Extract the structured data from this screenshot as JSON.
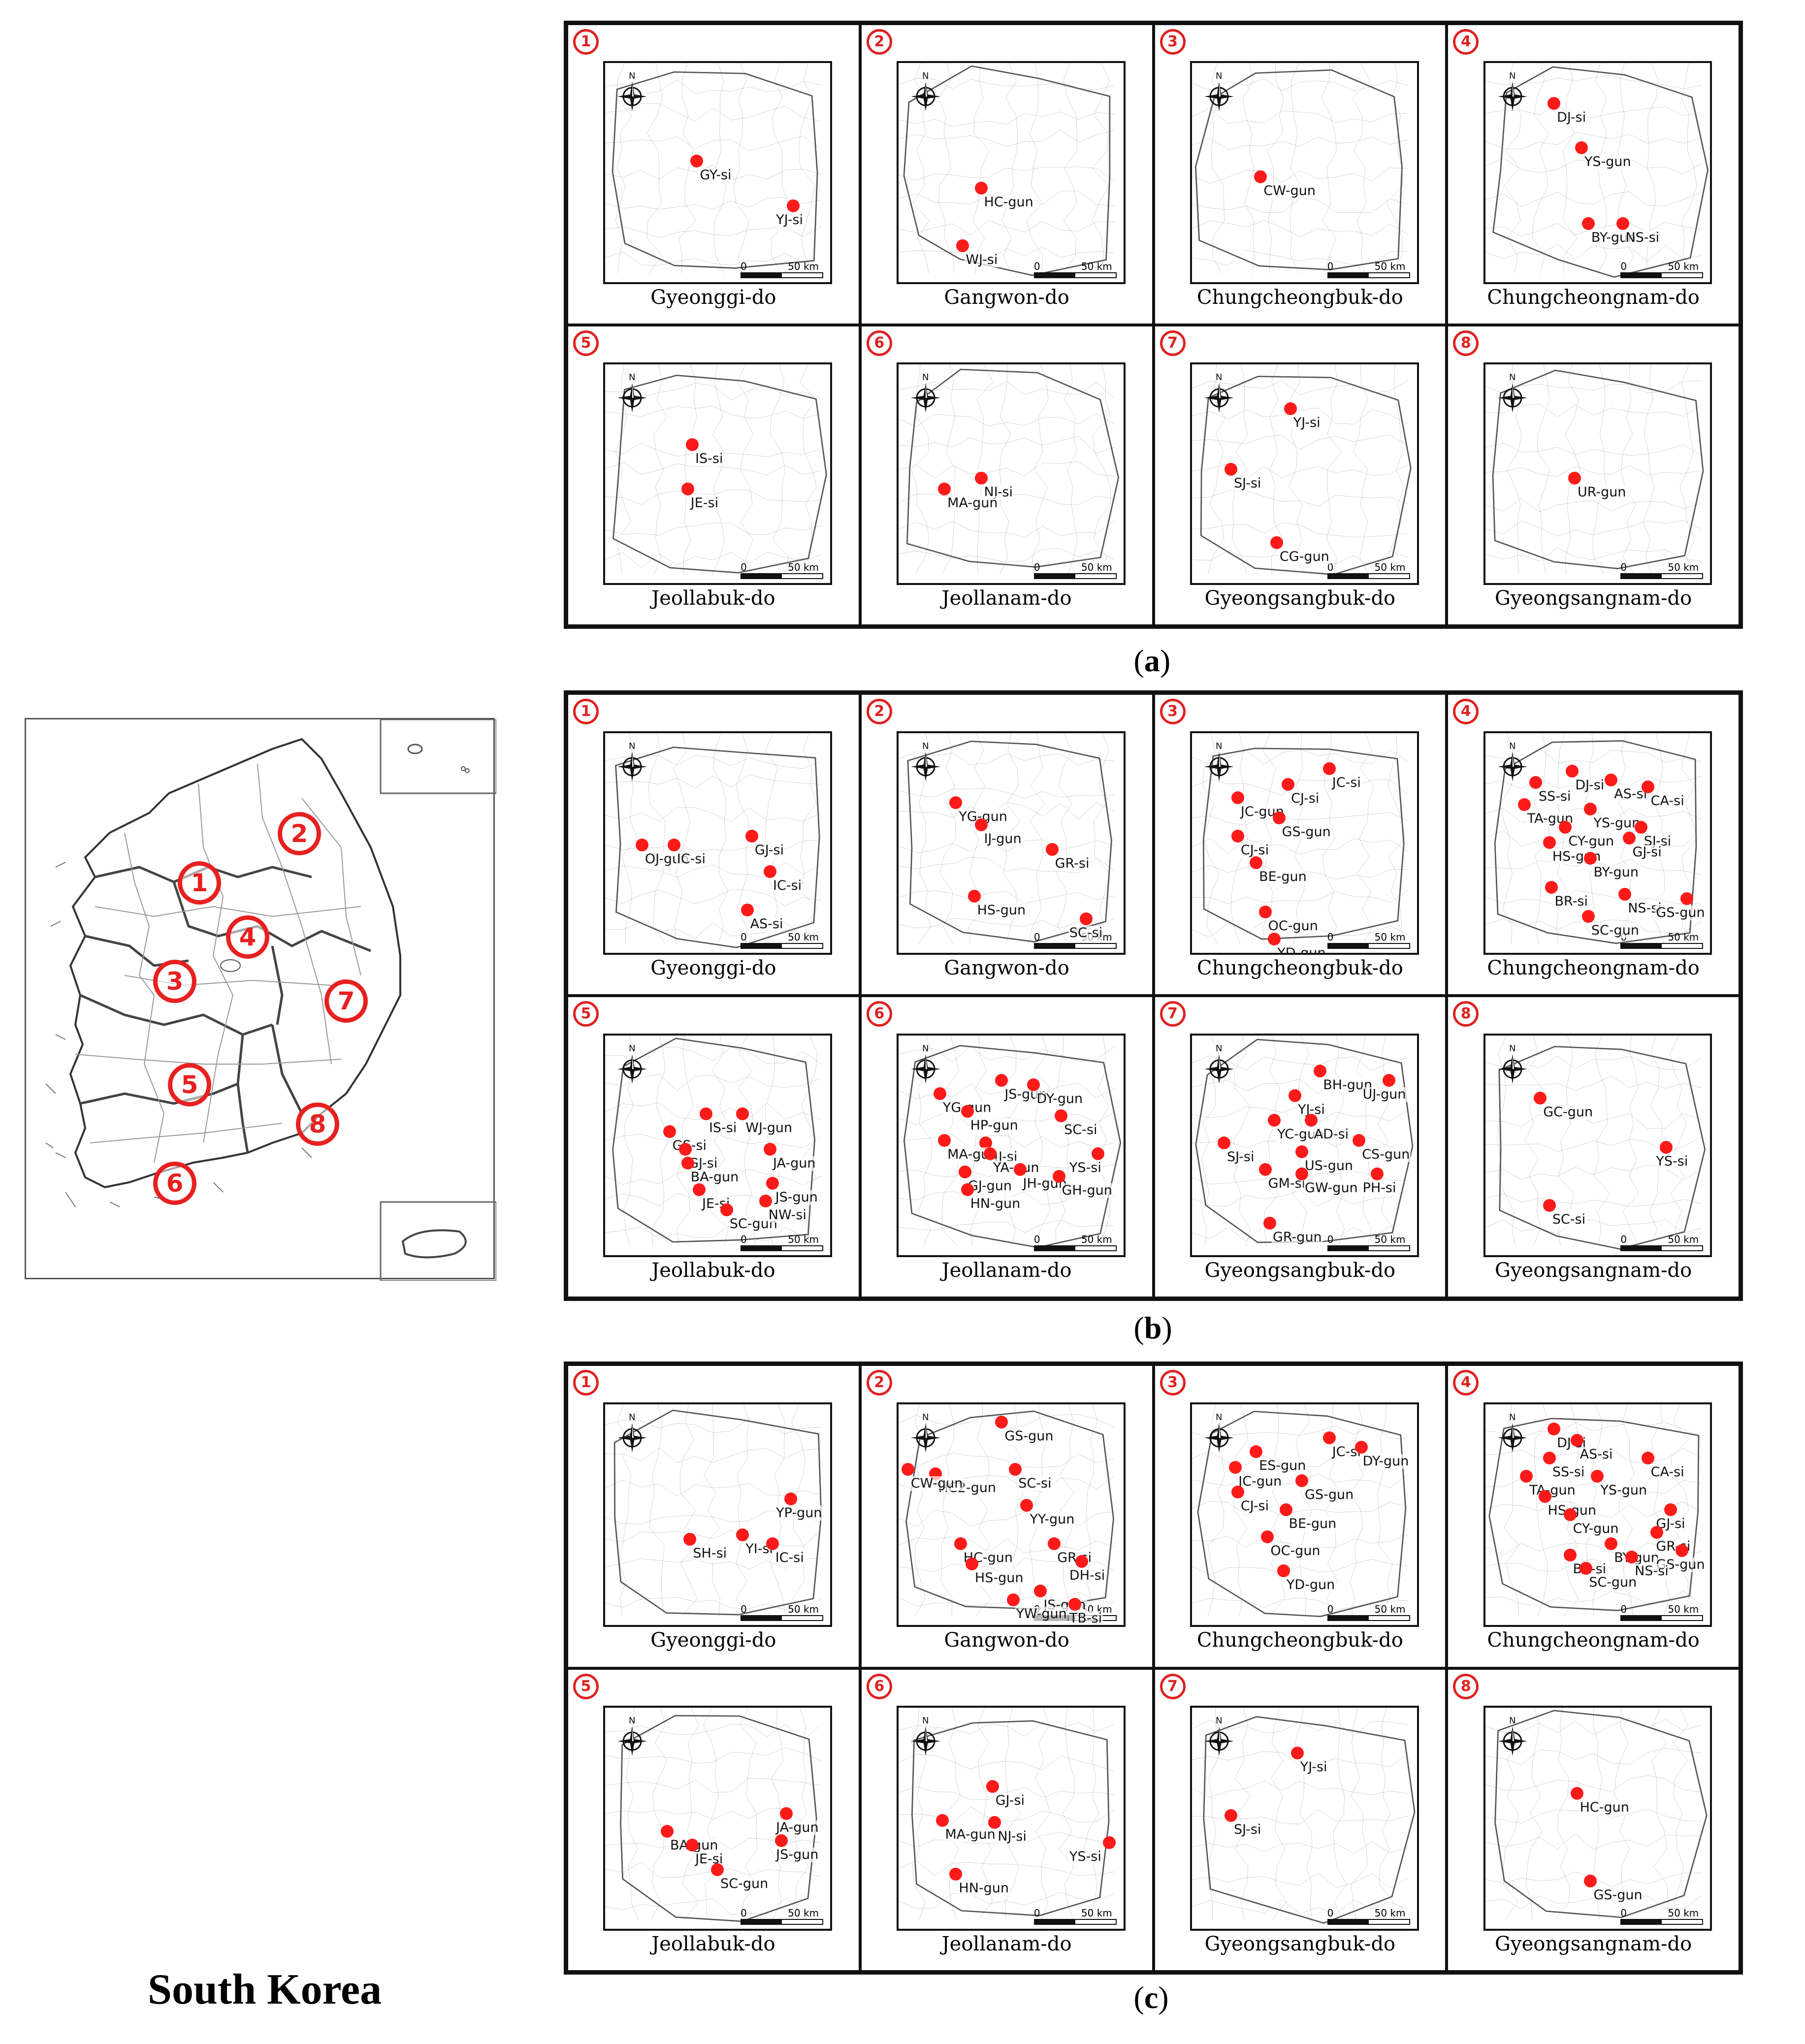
{
  "korea_label": "South Korea",
  "overview": {
    "markers": [
      "1",
      "2",
      "3",
      "4",
      "5",
      "6",
      "7",
      "8"
    ]
  },
  "panels": [
    {
      "label": "a",
      "provinces": [
        {
          "num": "1",
          "name": "Gyeonggi-do",
          "points": [
            {
              "name": "GY-si"
            },
            {
              "name": "YJ-si"
            }
          ]
        },
        {
          "num": "2",
          "name": "Gangwon-do",
          "points": [
            {
              "name": "HC-gun"
            },
            {
              "name": "WJ-si"
            }
          ]
        },
        {
          "num": "3",
          "name": "Chungcheongbuk-do",
          "points": [
            {
              "name": "CW-gun"
            }
          ]
        },
        {
          "num": "4",
          "name": "Chungcheongnam-do",
          "points": [
            {
              "name": "DJ-si"
            },
            {
              "name": "YS-gun"
            },
            {
              "name": "BY-gun"
            },
            {
              "name": "NS-si"
            }
          ]
        },
        {
          "num": "5",
          "name": "Jeollabuk-do",
          "points": [
            {
              "name": "IS-si"
            },
            {
              "name": "JE-si"
            }
          ]
        },
        {
          "num": "6",
          "name": "Jeollanam-do",
          "points": [
            {
              "name": "NJ-si"
            },
            {
              "name": "MA-gun"
            }
          ]
        },
        {
          "num": "7",
          "name": "Gyeongsangbuk-do",
          "points": [
            {
              "name": "YJ-si"
            },
            {
              "name": "SJ-si"
            },
            {
              "name": "CG-gun"
            }
          ]
        },
        {
          "num": "8",
          "name": "Gyeongsangnam-do",
          "points": [
            {
              "name": "UR-gun"
            }
          ]
        }
      ]
    },
    {
      "label": "b",
      "provinces": [
        {
          "num": "1",
          "name": "Gyeonggi-do",
          "points": [
            {
              "name": "OJ-gun"
            },
            {
              "name": "IC-si"
            },
            {
              "name": "GJ-si"
            },
            {
              "name": "IC-si"
            },
            {
              "name": "AS-si"
            }
          ]
        },
        {
          "num": "2",
          "name": "Gangwon-do",
          "points": [
            {
              "name": "YG-gun"
            },
            {
              "name": "IJ-gun"
            },
            {
              "name": "GR-si"
            },
            {
              "name": "HS-gun"
            },
            {
              "name": "SC-si"
            }
          ]
        },
        {
          "num": "3",
          "name": "Chungcheongbuk-do",
          "points": [
            {
              "name": "JC-si"
            },
            {
              "name": "JC-gun"
            },
            {
              "name": "CJ-si"
            },
            {
              "name": "GS-gun"
            },
            {
              "name": "CJ-si"
            },
            {
              "name": "BE-gun"
            },
            {
              "name": "OC-gun"
            },
            {
              "name": "YD-gun"
            }
          ]
        },
        {
          "num": "4",
          "name": "Chungcheongnam-do",
          "points": [
            {
              "name": "DJ-si"
            },
            {
              "name": "AS-si"
            },
            {
              "name": "SS-si"
            },
            {
              "name": "CA-si"
            },
            {
              "name": "TA-gun"
            },
            {
              "name": "YS-gun"
            },
            {
              "name": "CY-gun"
            },
            {
              "name": "SJ-si"
            },
            {
              "name": "HS-gun"
            },
            {
              "name": "GJ-si"
            },
            {
              "name": "BY-gun"
            },
            {
              "name": "BR-si"
            },
            {
              "name": "NS-si"
            },
            {
              "name": "GS-gun"
            },
            {
              "name": "SC-gun"
            }
          ]
        },
        {
          "num": "5",
          "name": "Jeollabuk-do",
          "points": [
            {
              "name": "IS-si"
            },
            {
              "name": "GS-si"
            },
            {
              "name": "WJ-gun"
            },
            {
              "name": "GJ-si"
            },
            {
              "name": "JA-gun"
            },
            {
              "name": "BA-gun"
            },
            {
              "name": "JE-si"
            },
            {
              "name": "JS-gun"
            },
            {
              "name": "SC-gun"
            },
            {
              "name": "NW-si"
            }
          ]
        },
        {
          "num": "6",
          "name": "Jeollanam-do",
          "points": [
            {
              "name": "JS-gun"
            },
            {
              "name": "DY-gun"
            },
            {
              "name": "YG-gun"
            },
            {
              "name": "HP-gun"
            },
            {
              "name": "SC-si"
            },
            {
              "name": "NJ-si"
            },
            {
              "name": "MA-gun"
            },
            {
              "name": "YA-gun"
            },
            {
              "name": "YS-si"
            },
            {
              "name": "GJ-gun"
            },
            {
              "name": "JH-gun"
            },
            {
              "name": "GH-gun"
            },
            {
              "name": "HN-gun"
            }
          ]
        },
        {
          "num": "7",
          "name": "Gyeongsangbuk-do",
          "points": [
            {
              "name": "BH-gun"
            },
            {
              "name": "UJ-gun"
            },
            {
              "name": "YJ-si"
            },
            {
              "name": "YC-gun"
            },
            {
              "name": "AD-si"
            },
            {
              "name": "SJ-si"
            },
            {
              "name": "CS-gun"
            },
            {
              "name": "US-gun"
            },
            {
              "name": "GM-si"
            },
            {
              "name": "GW-gun"
            },
            {
              "name": "PH-si"
            },
            {
              "name": "GR-gun"
            }
          ]
        },
        {
          "num": "8",
          "name": "Gyeongsangnam-do",
          "points": [
            {
              "name": "GC-gun"
            },
            {
              "name": "YS-si"
            },
            {
              "name": "SC-si"
            }
          ]
        }
      ]
    },
    {
      "label": "c",
      "provinces": [
        {
          "num": "1",
          "name": "Gyeonggi-do",
          "points": [
            {
              "name": "YP-gun"
            },
            {
              "name": "YI-si"
            },
            {
              "name": "SH-si"
            },
            {
              "name": "IC-si"
            }
          ]
        },
        {
          "num": "2",
          "name": "Gangwon-do",
          "points": [
            {
              "name": "GS-gun"
            },
            {
              "name": "SC-si"
            },
            {
              "name": "HC2-gun"
            },
            {
              "name": "CW-gun"
            },
            {
              "name": "YY-gun"
            },
            {
              "name": "HC-gun"
            },
            {
              "name": "GR-si"
            },
            {
              "name": "HS-gun"
            },
            {
              "name": "DH-si"
            },
            {
              "name": "JS-gun"
            },
            {
              "name": "TB-si"
            },
            {
              "name": "YW-gun"
            }
          ]
        },
        {
          "num": "3",
          "name": "Chungcheongbuk-do",
          "points": [
            {
              "name": "JC-si"
            },
            {
              "name": "ES-gun"
            },
            {
              "name": "DY-gun"
            },
            {
              "name": "JC-gun"
            },
            {
              "name": "GS-gun"
            },
            {
              "name": "CJ-si"
            },
            {
              "name": "BE-gun"
            },
            {
              "name": "OC-gun"
            },
            {
              "name": "YD-gun"
            }
          ]
        },
        {
          "num": "4",
          "name": "Chungcheongnam-do",
          "points": [
            {
              "name": "DJ-si"
            },
            {
              "name": "AS-si"
            },
            {
              "name": "SS-si"
            },
            {
              "name": "CA-si"
            },
            {
              "name": "TA-gun"
            },
            {
              "name": "YS-gun"
            },
            {
              "name": "HS-gun"
            },
            {
              "name": "CY-gun"
            },
            {
              "name": "GJ-si"
            },
            {
              "name": "GR-si"
            },
            {
              "name": "BY-gun"
            },
            {
              "name": "BR-si"
            },
            {
              "name": "GS-gun"
            },
            {
              "name": "NS-si"
            },
            {
              "name": "SC-gun"
            }
          ]
        },
        {
          "num": "5",
          "name": "Jeollabuk-do",
          "points": [
            {
              "name": "JA-gun"
            },
            {
              "name": "BA-gun"
            },
            {
              "name": "JS-gun"
            },
            {
              "name": "JE-si"
            },
            {
              "name": "SC-gun"
            }
          ]
        },
        {
          "num": "6",
          "name": "Jeollanam-do",
          "points": [
            {
              "name": "GJ-si"
            },
            {
              "name": "MA-gun"
            },
            {
              "name": "NJ-si"
            },
            {
              "name": "YS-si"
            },
            {
              "name": "HN-gun"
            }
          ]
        },
        {
          "num": "7",
          "name": "Gyeongsangbuk-do",
          "points": [
            {
              "name": "YJ-si"
            },
            {
              "name": "SJ-si"
            }
          ]
        },
        {
          "num": "8",
          "name": "Gyeongsangnam-do",
          "points": [
            {
              "name": "HC-gun"
            },
            {
              "name": "GS-gun"
            }
          ]
        }
      ]
    }
  ],
  "compass_letter": "N",
  "scale": {
    "zero": "0",
    "km": "50 km"
  },
  "colors": {
    "marker": "#ff1a1a",
    "circle": "#e02020",
    "frame": "#111111",
    "boundary": "#8a8a8a"
  }
}
